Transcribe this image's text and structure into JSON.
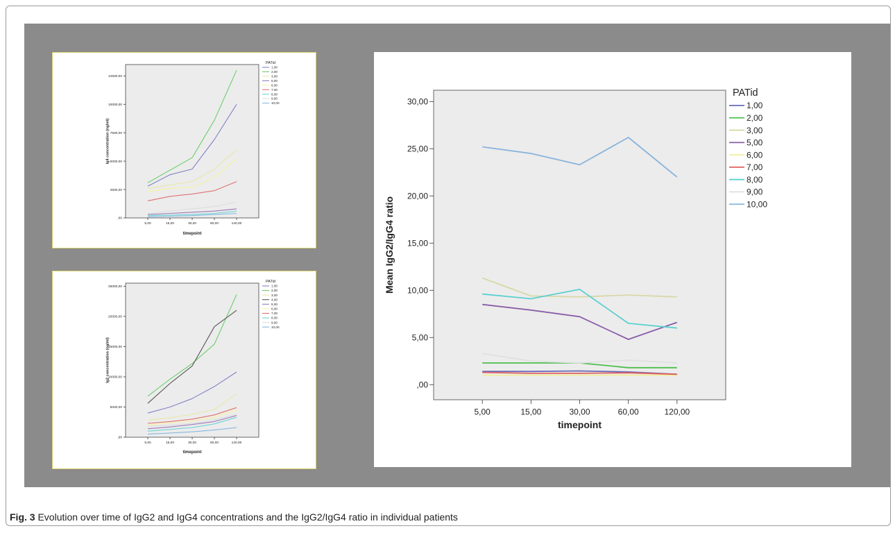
{
  "caption": {
    "label": "Fig. 3",
    "text": "Evolution over time of IgG2 and IgG4 concentrations and the IgG2/IgG4 ratio in individual patients"
  },
  "colors": {
    "background_grey": "#8b8b8b",
    "plot_bg": "#ececec",
    "panel_border": "#d8d06a"
  },
  "chart_data": [
    {
      "type": "line",
      "title": "",
      "xlabel": "timepoint",
      "ylabel": "Ig4 concentration (ng/ml)",
      "categories": [
        "5,00",
        "15,00",
        "30,00",
        "60,00",
        "120,00"
      ],
      "yticks": [
        ",00",
        "2500,00",
        "5000,00",
        "7500,00",
        "10000,00",
        "12500,00"
      ],
      "ylim": [
        0,
        13500
      ],
      "legend_title": "PATid",
      "legend_position": "right",
      "grid": false,
      "series": [
        {
          "name": "1,00",
          "color": "#8080c8",
          "values": [
            2800,
            3800,
            4300,
            6900,
            10000
          ]
        },
        {
          "name": "2,00",
          "color": "#6ccf6c",
          "values": [
            3100,
            4200,
            5300,
            8600,
            13000
          ]
        },
        {
          "name": "3,00",
          "color": "#e8e8a8",
          "values": [
            2600,
            2900,
            3200,
            4300,
            6000
          ]
        },
        {
          "name": "5,00",
          "color": "#9a78b8",
          "values": [
            300,
            400,
            500,
            600,
            800
          ]
        },
        {
          "name": "6,00",
          "color": "#f6f2a0",
          "values": [
            2300,
            2600,
            2700,
            3600,
            5200
          ]
        },
        {
          "name": "7,00",
          "color": "#e07070",
          "values": [
            1500,
            1900,
            2100,
            2400,
            3200
          ]
        },
        {
          "name": "8,00",
          "color": "#6cd4d4",
          "values": [
            200,
            250,
            300,
            400,
            600
          ]
        },
        {
          "name": "9,00",
          "color": "#dedede",
          "values": [
            400,
            600,
            800,
            1000,
            1400
          ]
        },
        {
          "name": "10,00",
          "color": "#88b8e0",
          "values": [
            100,
            150,
            200,
            300,
            400
          ]
        }
      ]
    },
    {
      "type": "line",
      "title": "",
      "xlabel": "timepoint",
      "ylabel": "Ig2 concentration (ng/ml)",
      "categories": [
        "5,00",
        "15,00",
        "30,00",
        "60,00",
        "120,00"
      ],
      "yticks": [
        ",00",
        "5000,00",
        "10000,00",
        "15000,00",
        "20000,00",
        "25000,00"
      ],
      "ylim": [
        0,
        25500
      ],
      "legend_title": "PATid",
      "legend_position": "right",
      "grid": false,
      "series": [
        {
          "name": "1,00",
          "color": "#8080c8",
          "values": [
            4000,
            5000,
            6400,
            8400,
            10800
          ]
        },
        {
          "name": "2,00",
          "color": "#6ccf6c",
          "values": [
            6800,
            9600,
            12200,
            15400,
            23600
          ]
        },
        {
          "name": "3,00",
          "color": "#e8e8a8",
          "values": [
            2800,
            3200,
            3800,
            4600,
            7200
          ]
        },
        {
          "name": "4,00",
          "color": "#555555",
          "values": [
            5600,
            8900,
            11800,
            18300,
            21000
          ]
        },
        {
          "name": "5,00",
          "color": "#9a78b8",
          "values": [
            1400,
            1700,
            2100,
            2600,
            3600
          ]
        },
        {
          "name": "6,00",
          "color": "#f6f2a0",
          "values": [
            2000,
            2400,
            2700,
            3300,
            4500
          ]
        },
        {
          "name": "7,00",
          "color": "#e07070",
          "values": [
            2300,
            2600,
            3000,
            3700,
            4900
          ]
        },
        {
          "name": "8,00",
          "color": "#6cd4d4",
          "values": [
            1000,
            1300,
            1600,
            2200,
            3300
          ]
        },
        {
          "name": "9,00",
          "color": "#dedede",
          "values": [
            1800,
            2000,
            2300,
            2900,
            3800
          ]
        },
        {
          "name": "10,00",
          "color": "#88b8e0",
          "values": [
            500,
            700,
            900,
            1200,
            1600
          ]
        }
      ]
    },
    {
      "type": "line",
      "title": "",
      "xlabel": "timepoint",
      "ylabel": "Mean IgG2/IgG4 ratio",
      "categories": [
        "5,00",
        "15,00",
        "30,00",
        "60,00",
        "120,00"
      ],
      "yticks": [
        ",00",
        "5,00",
        "10,00",
        "15,00",
        "20,00",
        "25,00",
        "30,00"
      ],
      "ylim": [
        -1.6,
        31.2
      ],
      "legend_title": "PATid",
      "legend_position": "right",
      "grid": false,
      "series": [
        {
          "name": "1,00",
          "color": "#6a6ab8",
          "values": [
            1.4,
            1.4,
            1.45,
            1.35,
            1.1
          ]
        },
        {
          "name": "2,00",
          "color": "#4cbf4c",
          "values": [
            2.3,
            2.3,
            2.3,
            1.8,
            1.8
          ]
        },
        {
          "name": "3,00",
          "color": "#d8d8a8",
          "values": [
            11.3,
            9.4,
            9.3,
            9.5,
            9.3
          ]
        },
        {
          "name": "5,00",
          "color": "#8a5ea8",
          "values": [
            8.5,
            7.9,
            7.2,
            4.8,
            6.6
          ]
        },
        {
          "name": "6,00",
          "color": "#f2ee9a",
          "values": [
            1.0,
            1.0,
            1.0,
            1.0,
            1.0
          ]
        },
        {
          "name": "7,00",
          "color": "#e06060",
          "values": [
            1.3,
            1.2,
            1.2,
            1.25,
            1.1
          ]
        },
        {
          "name": "8,00",
          "color": "#5cd0d0",
          "values": [
            9.6,
            9.1,
            10.1,
            6.5,
            6.0
          ]
        },
        {
          "name": "9,00",
          "color": "#e0e0e0",
          "values": [
            3.3,
            2.5,
            2.3,
            2.6,
            2.3
          ]
        },
        {
          "name": "10,00",
          "color": "#88b4dc",
          "values": [
            25.2,
            24.5,
            23.3,
            26.2,
            22.0
          ]
        }
      ]
    }
  ]
}
